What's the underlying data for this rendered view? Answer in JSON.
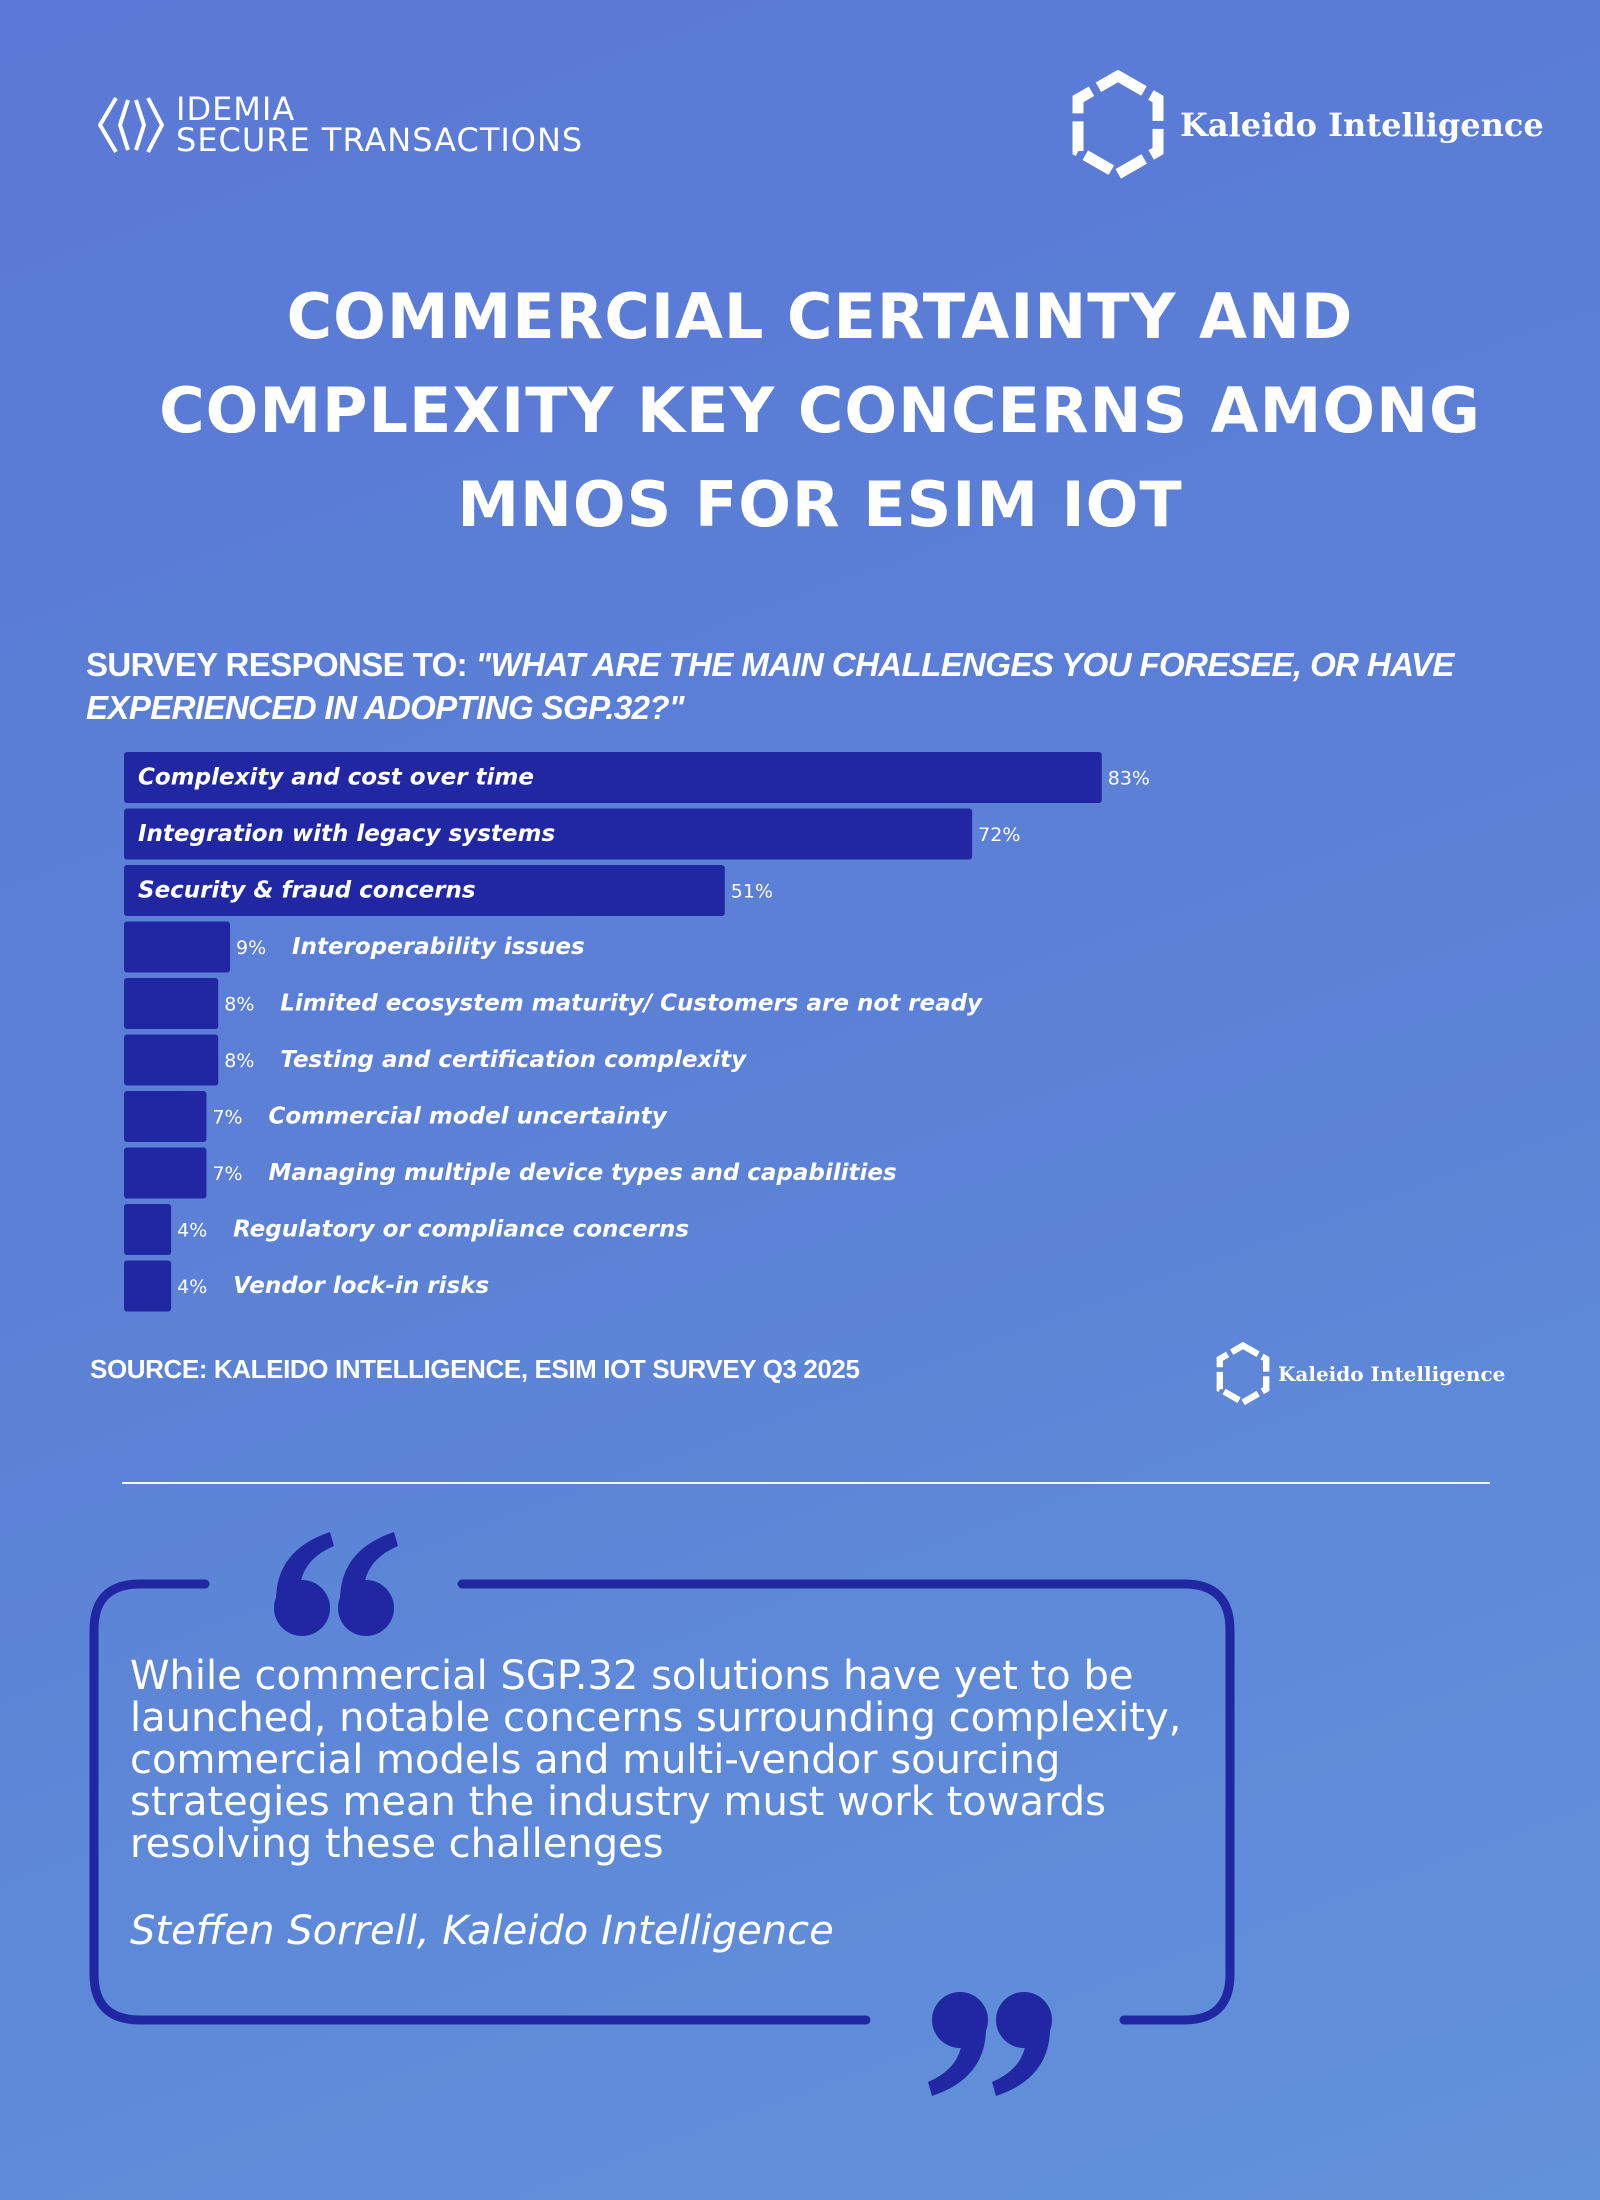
{
  "logos": {
    "idemia": {
      "line1": "IDEMIA",
      "line2": "SECURE TRANSACTIONS"
    },
    "kaleido": {
      "name": "Kaleido Intelligence"
    }
  },
  "headline": {
    "line1": "COMMERCIAL CERTAINTY AND",
    "line2": "COMPLEXITY KEY CONCERNS AMONG",
    "line3": "MNOS FOR ESIM IOT"
  },
  "question": {
    "prefix": "SURVEY RESPONSE TO: ",
    "text": "\"WHAT ARE THE MAIN CHALLENGES YOU FORESEE, OR HAVE EXPERIENCED IN ADOPTING SGP.32?\""
  },
  "chart_data": {
    "type": "bar",
    "orientation": "horizontal",
    "categories": [
      "Complexity and cost over time",
      "Integration with legacy systems",
      "Security & fraud concerns",
      "Interoperability issues",
      "Limited ecosystem maturity/ Customers are not ready",
      "Testing and certification complexity",
      "Commercial model uncertainty",
      "Managing multiple device types and capabilities",
      "Regulatory or compliance concerns",
      "Vendor lock-in risks"
    ],
    "values": [
      83,
      72,
      51,
      9,
      8,
      8,
      7,
      7,
      4,
      4
    ],
    "value_labels": [
      "83%",
      "72%",
      "51%",
      "9%",
      "8%",
      "8%",
      "7%",
      "7%",
      "4%",
      "4%"
    ],
    "unit": "%",
    "xlim": [
      0,
      100
    ],
    "bar_color": "#2127a3",
    "grid": false,
    "legend": "none"
  },
  "source": {
    "text": "SOURCE: KALEIDO INTELLIGENCE, ESIM IOT SURVEY Q3 2025"
  },
  "quote": {
    "text": "While commercial SGP.32 solutions have yet to be launched, notable concerns surrounding complexity, commercial models and multi-vendor sourcing strategies mean the industry must work towards resolving these challenges",
    "author": "Steffen Sorrell, Kaleido Intelligence"
  },
  "colors": {
    "background": "#5b80d6",
    "accent": "#2127a3",
    "text": "#ffffff"
  }
}
